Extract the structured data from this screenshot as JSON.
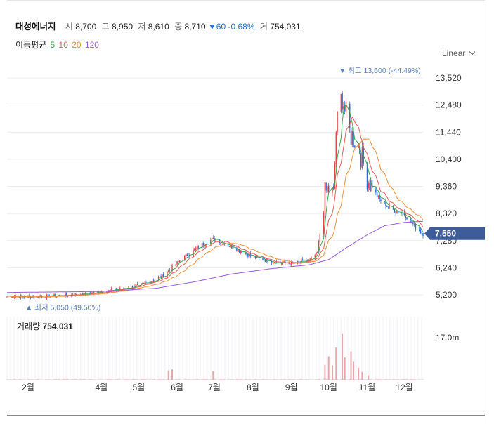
{
  "header": {
    "name": "대성에너지",
    "open_label": "시",
    "open": "8,700",
    "high_label": "고",
    "high": "8,950",
    "low_label": "저",
    "low": "8,610",
    "close_label": "종",
    "close": "8,710",
    "change": "▼60",
    "change_pct": "-0.68%",
    "volume_label": "거",
    "volume": "754,031"
  },
  "ma_legend": {
    "title": "이동평균",
    "periods": [
      {
        "label": "5",
        "color": "#37a84a"
      },
      {
        "label": "10",
        "color": "#ee5a5a"
      },
      {
        "label": "20",
        "color": "#f0913a"
      },
      {
        "label": "120",
        "color": "#9b59e0"
      }
    ]
  },
  "scale_selector": {
    "label": "Linear",
    "icon": "chevron-down-icon"
  },
  "colors": {
    "up": "#e0474c",
    "down": "#2c6fd6",
    "price_tag": "#3e5b9a",
    "grid": "#ececec"
  },
  "chart_data": {
    "type": "candlestick",
    "y_ticks": [
      "13,520",
      "12,480",
      "11,440",
      "10,400",
      "9,360",
      "8,320",
      "7,280",
      "6,240",
      "5,200"
    ],
    "y_tick_values": [
      13520,
      12480,
      11440,
      10400,
      9360,
      8320,
      7280,
      6240,
      5200
    ],
    "ylim": [
      4950,
      14050
    ],
    "x_ticks": [
      {
        "label": "2월",
        "date": "2021-02-01"
      },
      {
        "label": "4월",
        "date": "2021-04-01"
      },
      {
        "label": "5월",
        "date": "2021-05-01"
      },
      {
        "label": "6월",
        "date": "2021-06-01"
      },
      {
        "label": "7월",
        "date": "2021-07-01"
      },
      {
        "label": "8월",
        "date": "2021-08-01"
      },
      {
        "label": "9월",
        "date": "2021-09-01"
      },
      {
        "label": "10월",
        "date": "2021-10-01"
      },
      {
        "label": "11월",
        "date": "2021-11-01"
      },
      {
        "label": "12월",
        "date": "2021-12-01"
      }
    ],
    "date_range": [
      "2021-01-15",
      "2021-12-16"
    ],
    "close_series": {
      "dates": [
        "2021-01-15",
        "2021-02-01",
        "2021-03-01",
        "2021-03-20",
        "2021-04-10",
        "2021-05-01",
        "2021-05-20",
        "2021-06-05",
        "2021-06-25",
        "2021-07-01",
        "2021-07-15",
        "2021-08-01",
        "2021-08-20",
        "2021-09-01",
        "2021-09-15",
        "2021-09-22",
        "2021-09-28",
        "2021-10-02",
        "2021-10-05",
        "2021-10-07",
        "2021-10-12",
        "2021-10-15",
        "2021-10-18",
        "2021-10-22",
        "2021-10-26",
        "2021-10-29",
        "2021-11-01",
        "2021-11-10",
        "2021-11-20",
        "2021-12-01",
        "2021-12-10",
        "2021-12-16"
      ],
      "values": [
        5150,
        5120,
        5180,
        5240,
        5380,
        5550,
        5900,
        6600,
        7250,
        7350,
        7050,
        6650,
        6450,
        6400,
        6500,
        6800,
        9100,
        9300,
        9000,
        11500,
        12900,
        12000,
        11400,
        11200,
        10800,
        10200,
        9700,
        8900,
        8500,
        8300,
        7800,
        7550
      ]
    },
    "ma120": {
      "dates": [
        "2021-01-15",
        "2021-04-01",
        "2021-05-15",
        "2021-06-15",
        "2021-07-15",
        "2021-08-15",
        "2021-09-15",
        "2021-10-01",
        "2021-10-15",
        "2021-11-01",
        "2021-11-15",
        "2021-12-01",
        "2021-12-16"
      ],
      "values": [
        5290,
        5330,
        5450,
        5700,
        6000,
        6200,
        6350,
        6550,
        7000,
        7500,
        7850,
        7980,
        8020
      ]
    },
    "volume_series": {
      "dates": [
        "2021-05-25",
        "2021-05-28",
        "2021-06-30",
        "2021-09-28",
        "2021-10-01",
        "2021-10-04",
        "2021-10-07",
        "2021-10-12",
        "2021-10-14",
        "2021-10-19",
        "2021-10-21",
        "2021-10-25",
        "2021-10-28",
        "2021-11-02"
      ],
      "values": [
        3800000,
        4200000,
        3400000,
        6000000,
        9500000,
        5800000,
        13000000,
        18500000,
        9000000,
        11500000,
        7500000,
        4800000,
        3200000,
        1800000
      ]
    },
    "volume_tick": "17.0m",
    "volume_tick_value": 17000000,
    "high_marker": {
      "label": "▼ 최고",
      "value": "13,600",
      "pct": "(-44.49%)",
      "price": 13600
    },
    "low_marker": {
      "label": "▲ 최저",
      "value": "5,050",
      "pct": "(49.50%)",
      "price": 5050
    },
    "last_price": {
      "label": "7,550",
      "price": 7550
    },
    "volume_panel": {
      "title": "거래량",
      "value": "754,031"
    }
  }
}
